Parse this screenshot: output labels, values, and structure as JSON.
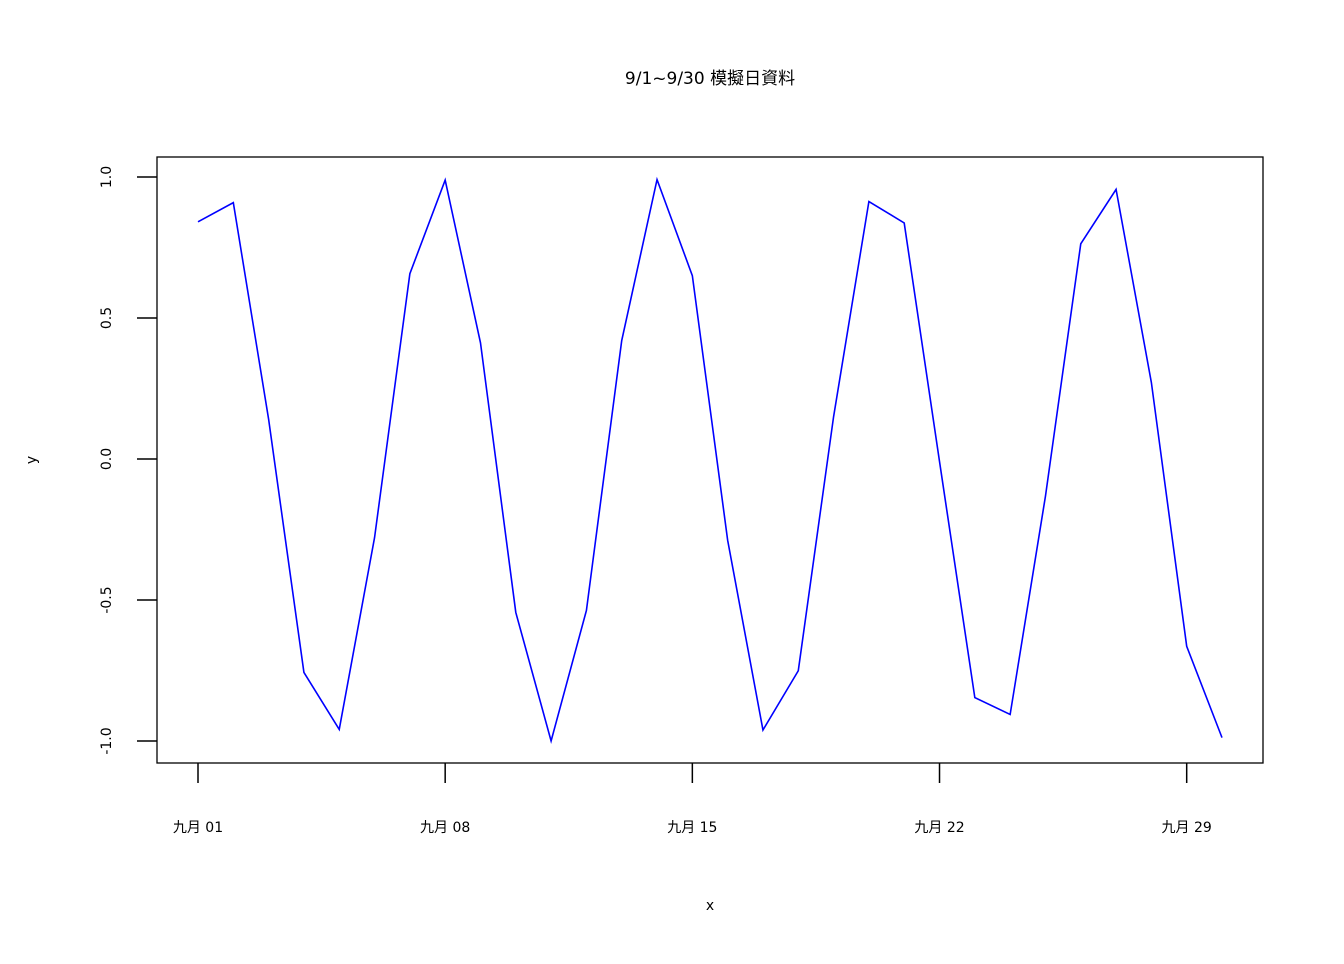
{
  "chart_data": {
    "type": "line",
    "title": "9/1~9/30 模擬日資料",
    "xlabel": "x",
    "ylabel": "y",
    "x": [
      "09-01",
      "09-02",
      "09-03",
      "09-04",
      "09-05",
      "09-06",
      "09-07",
      "09-08",
      "09-09",
      "09-10",
      "09-11",
      "09-12",
      "09-13",
      "09-14",
      "09-15",
      "09-16",
      "09-17",
      "09-18",
      "09-19",
      "09-20",
      "09-21",
      "09-22",
      "09-23",
      "09-24",
      "09-25",
      "09-26",
      "09-27",
      "09-28",
      "09-29",
      "09-30"
    ],
    "values": [
      0.841,
      0.909,
      0.141,
      -0.757,
      -0.959,
      -0.279,
      0.657,
      0.989,
      0.412,
      -0.544,
      -1.0,
      -0.537,
      0.42,
      0.991,
      0.65,
      -0.288,
      -0.961,
      -0.751,
      0.15,
      0.913,
      0.837,
      -0.009,
      -0.846,
      -0.906,
      -0.132,
      0.763,
      0.956,
      0.271,
      -0.664,
      -0.988
    ],
    "xticks": [
      {
        "day": 1,
        "label": "九月 01"
      },
      {
        "day": 8,
        "label": "九月 08"
      },
      {
        "day": 15,
        "label": "九月 15"
      },
      {
        "day": 22,
        "label": "九月 22"
      },
      {
        "day": 29,
        "label": "九月 29"
      }
    ],
    "yticks": [
      {
        "value": -1.0,
        "label": "-1.0"
      },
      {
        "value": -0.5,
        "label": "-0.5"
      },
      {
        "value": 0.0,
        "label": "0.0"
      },
      {
        "value": 0.5,
        "label": "0.5"
      },
      {
        "value": 1.0,
        "label": "1.0"
      }
    ],
    "ylim": [
      -1.0,
      1.0
    ],
    "grid": false,
    "line_color": "#0000ff"
  }
}
